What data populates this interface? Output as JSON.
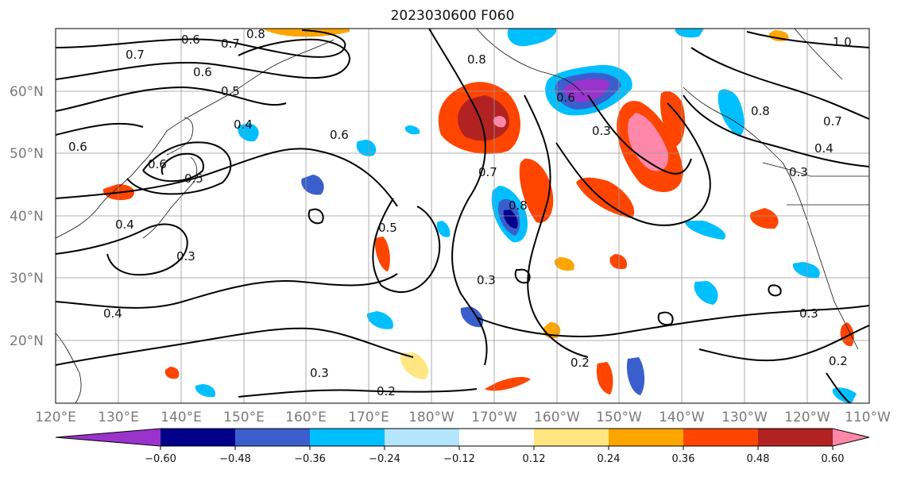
{
  "title": "2023030600 F060",
  "latitude_labels": [
    "60°N",
    "50°N",
    "40°N",
    "30°N",
    "20°N"
  ],
  "longitude_labels": [
    "120°E",
    "130°E",
    "140°E",
    "150°E",
    "160°E",
    "170°E",
    "180°W",
    "170°W",
    "160°W",
    "150°W",
    "140°W",
    "130°W",
    "120°W",
    "110°W"
  ],
  "colorbar": {
    "tick_labels": [
      "−0.60",
      "−0.48",
      "−0.36",
      "−0.24",
      "−0.12",
      "0.12",
      "0.24",
      "0.36",
      "0.48",
      "0.60"
    ],
    "colors": [
      "#9933cc",
      "#00008b",
      "#3a5fcd",
      "#00bfff",
      "#b3e5fc",
      "#ffffff",
      "#ffe680",
      "#ffa500",
      "#ff4500",
      "#b22222",
      "#ff88aa"
    ]
  },
  "contour_labels": [
    "0.6",
    "0.7",
    "0.8",
    "0.7",
    "0.6",
    "0.5",
    "0.4",
    "0.6",
    "0.6",
    "0.5",
    "0.4",
    "0.3",
    "0.4",
    "0.3",
    "0.2",
    "0.5",
    "0.7",
    "0.8",
    "0.6",
    "0.8",
    "0.3",
    "0.2",
    "0.8",
    "0.6",
    "0.3",
    "0.7",
    "0.4",
    "0.3",
    "0.3",
    "0.2",
    "1.0"
  ]
}
